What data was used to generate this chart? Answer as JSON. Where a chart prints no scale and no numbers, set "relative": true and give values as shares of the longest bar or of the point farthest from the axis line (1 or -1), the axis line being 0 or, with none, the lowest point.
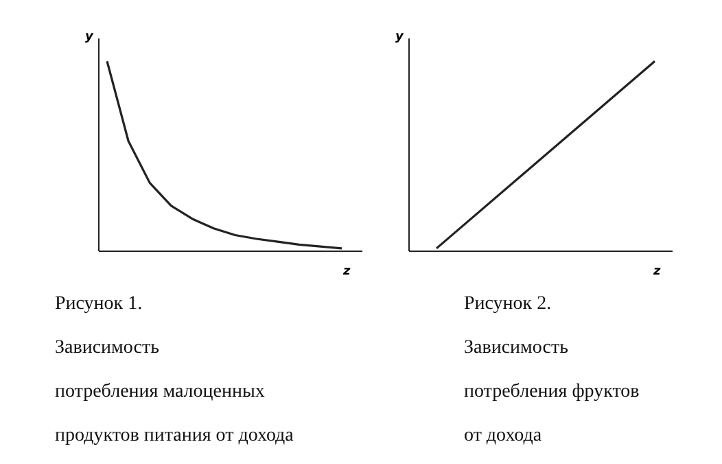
{
  "chart_data": [
    {
      "type": "line",
      "title": "Рисунок 1.",
      "annotations": [
        "Зависимость",
        "потребления малоценных",
        "продуктов питания от дохода"
      ],
      "xlabel": "z",
      "ylabel": "y",
      "relative": true,
      "color": "#222222",
      "categories": [
        null,
        null,
        null,
        null,
        null,
        null,
        null,
        null,
        null,
        null,
        null,
        null
      ],
      "values": [
        1.0,
        0.58,
        0.36,
        0.24,
        0.17,
        0.12,
        0.085,
        0.065,
        0.05,
        0.035,
        0.025,
        0.015
      ]
    },
    {
      "type": "line",
      "title": "Рисунок 2.",
      "annotations": [
        "Зависимость",
        "потребления фруктов",
        "от дохода"
      ],
      "xlabel": "z",
      "ylabel": "y",
      "relative": true,
      "color": "#222222",
      "categories": [
        null,
        null
      ],
      "values": [
        0.015,
        1.0
      ]
    }
  ]
}
